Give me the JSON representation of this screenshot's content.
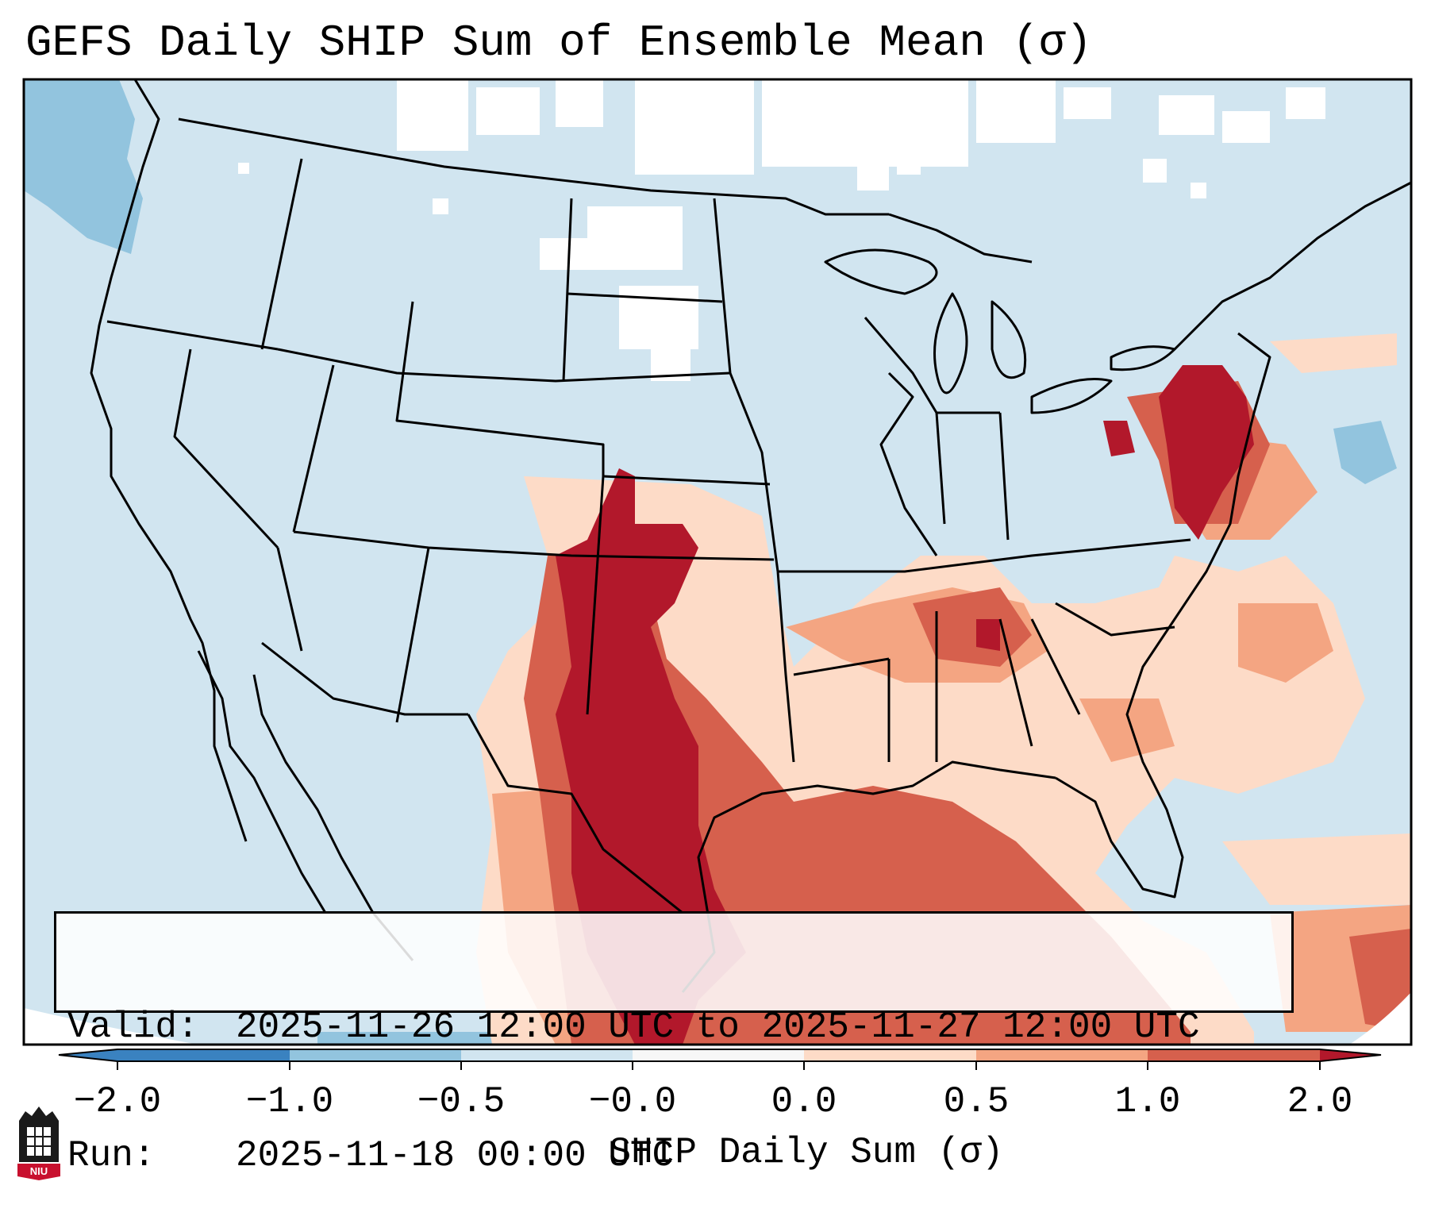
{
  "title": "GEFS Daily SHIP Sum of Ensemble Mean (σ)",
  "info": {
    "valid_label": "Valid:",
    "valid_value": "2025-11-26 12:00 UTC to 2025-11-27 12:00 UTC",
    "run_label": "Run:",
    "run_value": "2025-11-18 00:00 UTC"
  },
  "colorbar": {
    "label": "SHIP Daily Sum (σ)",
    "ticks": [
      "−2.0",
      "−1.0",
      "−0.5",
      "−0.0",
      "0.0",
      "0.5",
      "1.0",
      "2.0"
    ],
    "colors": [
      "#3a82c0",
      "#92c4de",
      "#d1e5f0",
      "#f7f7f7",
      "#fddbc7",
      "#f4a582",
      "#d6604d",
      "#b2182b"
    ]
  },
  "logo": {
    "text": "NIU",
    "accent": "#c8102e"
  },
  "palette": {
    "ocean": "#d1e5f0",
    "pacific_low": "#92c4de",
    "near_zero": "#ffffff",
    "light_red": "#fddbc7",
    "mid_red": "#f4a582",
    "red": "#d6604d",
    "dark_red": "#b2182b"
  }
}
